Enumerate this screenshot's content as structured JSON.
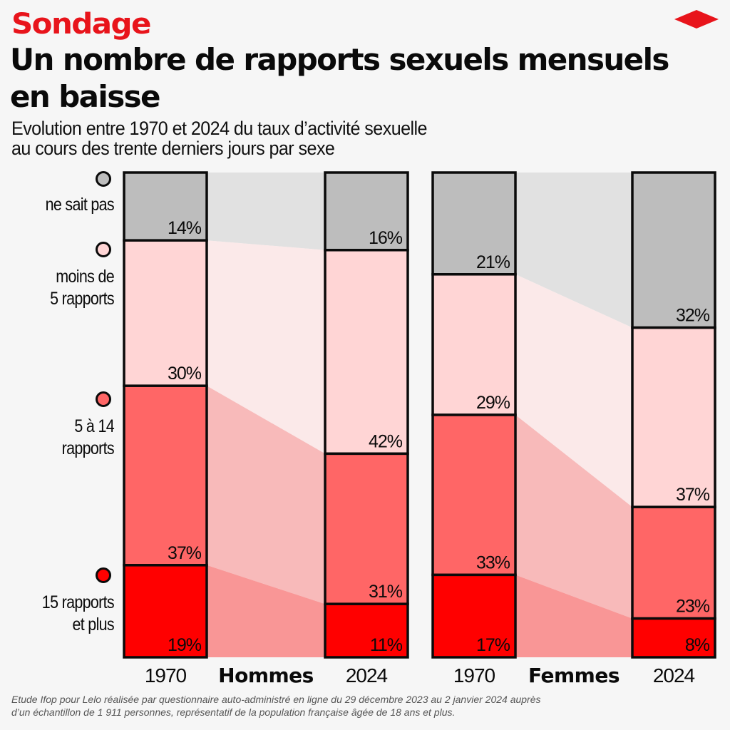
{
  "header": {
    "kicker": "Sondage",
    "title": "Un nombre de rapports sexuels mensuels en baisse",
    "subtitle_line1": "Evolution entre 1970 et 2024 du taux d’activité sexuelle",
    "subtitle_line2": "au cours des trente derniers jours par sexe",
    "logo_icon": "red-diamond-logo"
  },
  "legend": [
    {
      "label_line1": "ne sait pas",
      "label_line2": "",
      "color": "#bdbdbd"
    },
    {
      "label_line1": "moins de",
      "label_line2": "5 rapports",
      "color": "#ffd5d5"
    },
    {
      "label_line1": "5 à 14",
      "label_line2": "rapports",
      "color": "#ff6666"
    },
    {
      "label_line1": "15 rapports",
      "label_line2": "et plus",
      "color": "#ff0000"
    }
  ],
  "chart_data": {
    "type": "bar",
    "subtype": "stacked-100-percent with flow bands",
    "title": "Un nombre de rapports sexuels mensuels en baisse",
    "subtitle": "Evolution entre 1970 et 2024 du taux d’activité sexuelle au cours des trente derniers jours par sexe",
    "unit": "%",
    "ylim": [
      0,
      100
    ],
    "grid": false,
    "legend_position": "left",
    "categories_order_top_to_bottom": [
      "ne sait pas",
      "moins de 5 rapports",
      "5 à 14 rapports",
      "15 rapports et plus"
    ],
    "colors": {
      "ne sait pas": "#bdbdbd",
      "moins de 5 rapports": "#ffd5d5",
      "5 à 14 rapports": "#ff6666",
      "15 rapports et plus": "#ff0000"
    },
    "flow_colors": {
      "ne sait pas": "#e1e1e1",
      "moins de 5 rapports": "#fbe9e9",
      "5 à 14 rapports": "#f8baba",
      "15 rapports et plus": "#f99696"
    },
    "groups": [
      {
        "name": "Hommes",
        "bars": [
          {
            "year": "1970",
            "values": [
              14,
              30,
              37,
              19
            ],
            "labels": [
              "14%",
              "30%",
              "37%",
              "19%"
            ]
          },
          {
            "year": "2024",
            "values": [
              16,
              42,
              31,
              11
            ],
            "labels": [
              "16%",
              "42%",
              "31%",
              "11%"
            ]
          }
        ]
      },
      {
        "name": "Femmes",
        "bars": [
          {
            "year": "1970",
            "values": [
              21,
              29,
              33,
              17
            ],
            "labels": [
              "21%",
              "29%",
              "33%",
              "17%"
            ]
          },
          {
            "year": "2024",
            "values": [
              32,
              37,
              23,
              8
            ],
            "labels": [
              "32%",
              "37%",
              "23%",
              "8%"
            ]
          }
        ]
      }
    ]
  },
  "footer": {
    "source_line1": "Etude Ifop pour Lelo réalisée par questionnaire auto-administré en ligne du 29 décembre 2023 au 2 janvier 2024 auprès",
    "source_line2": "d’un échantillon de 1 911 personnes, représentatif de la population française âgée de 18 ans et plus."
  }
}
